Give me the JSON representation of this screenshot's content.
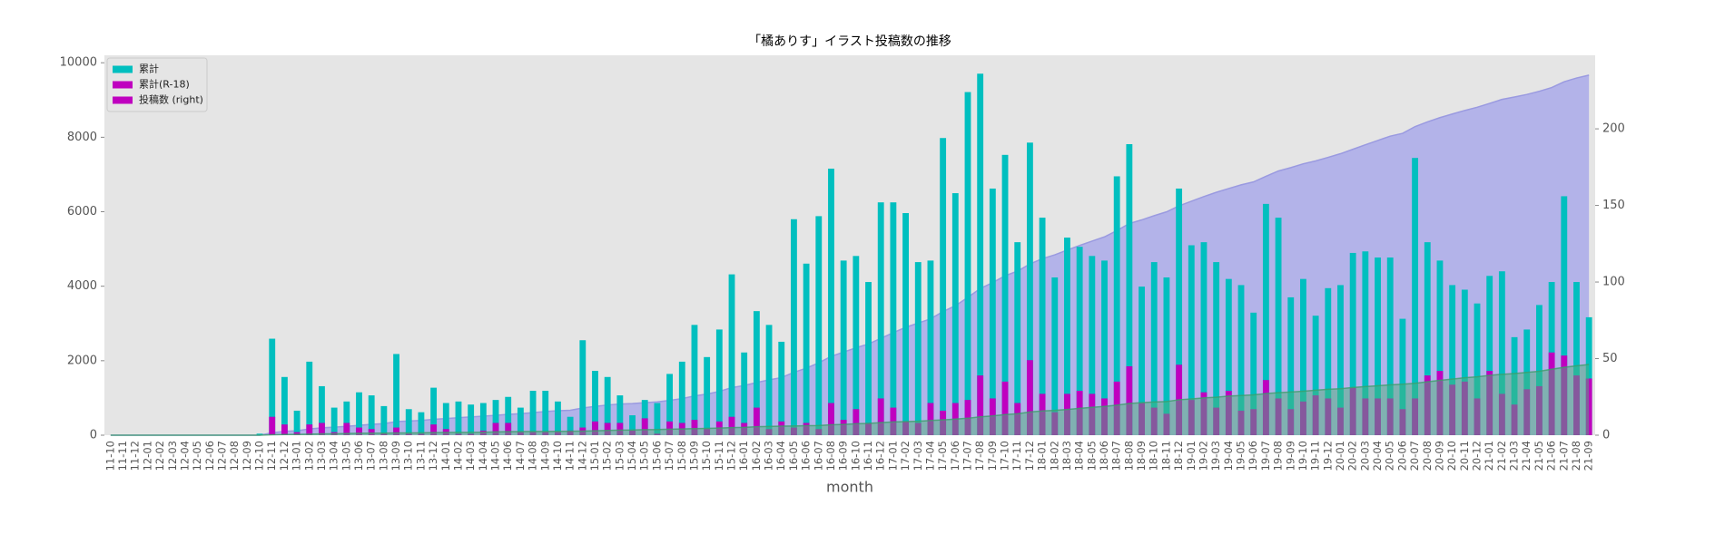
{
  "chart_data": {
    "type": "bar",
    "title": "「橘ありす」イラスト投稿数の推移",
    "x_label": "month",
    "categories": [
      "11-10",
      "11-11",
      "11-12",
      "12-01",
      "12-02",
      "12-03",
      "12-04",
      "12-05",
      "12-06",
      "12-07",
      "12-08",
      "12-09",
      "12-10",
      "12-11",
      "12-12",
      "13-01",
      "13-02",
      "13-03",
      "13-04",
      "13-05",
      "13-06",
      "13-07",
      "13-08",
      "13-09",
      "13-10",
      "13-11",
      "13-12",
      "14-01",
      "14-02",
      "14-03",
      "14-04",
      "14-05",
      "14-06",
      "14-07",
      "14-08",
      "14-09",
      "14-10",
      "14-11",
      "14-12",
      "15-01",
      "15-02",
      "15-03",
      "15-04",
      "15-05",
      "15-06",
      "15-07",
      "15-08",
      "15-09",
      "15-10",
      "15-11",
      "15-12",
      "16-01",
      "16-02",
      "16-03",
      "16-04",
      "16-05",
      "16-06",
      "16-07",
      "16-08",
      "16-09",
      "16-10",
      "16-11",
      "16-12",
      "17-01",
      "17-02",
      "17-03",
      "17-04",
      "17-05",
      "17-06",
      "17-07",
      "17-08",
      "17-09",
      "17-10",
      "17-11",
      "17-12",
      "18-01",
      "18-02",
      "18-03",
      "18-04",
      "18-05",
      "18-06",
      "18-07",
      "18-08",
      "18-09",
      "18-10",
      "18-11",
      "18-12",
      "19-01",
      "19-02",
      "19-03",
      "19-04",
      "19-05",
      "19-06",
      "19-07",
      "19-08",
      "19-09",
      "19-10",
      "19-11",
      "19-12",
      "20-01",
      "20-02",
      "20-03",
      "20-04",
      "20-05",
      "20-06",
      "20-07",
      "20-08",
      "20-09",
      "20-10",
      "20-11",
      "20-12",
      "21-01",
      "21-02",
      "21-03",
      "21-04",
      "21-05",
      "21-06",
      "21-07",
      "21-08",
      "21-09"
    ],
    "series": [
      {
        "name": "累計",
        "type": "area",
        "color": "#b3b3e9",
        "line_color": "#9a9ae0",
        "alpha": 1,
        "legend_color": "#00bfbf",
        "values": [
          0,
          0,
          0,
          0,
          0,
          0,
          0,
          0,
          0,
          0,
          0,
          0,
          1,
          64,
          102,
          118,
          166,
          198,
          216,
          238,
          266,
          292,
          311,
          364,
          381,
          396,
          427,
          448,
          470,
          490,
          511,
          534,
          559,
          577,
          606,
          635,
          657,
          669,
          731,
          773,
          811,
          837,
          850,
          873,
          894,
          934,
          982,
          1054,
          1105,
          1174,
          1279,
          1333,
          1414,
          1486,
          1547,
          1688,
          1800,
          1943,
          2117,
          2231,
          2348,
          2448,
          2600,
          2752,
          2897,
          3010,
          3124,
          3318,
          3476,
          3700,
          3936,
          4097,
          4280,
          4406,
          4597,
          4739,
          4842,
          4971,
          5094,
          5211,
          5325,
          5494,
          5684,
          5781,
          5894,
          5997,
          6158,
          6282,
          6408,
          6521,
          6623,
          6721,
          6801,
          6952,
          7094,
          7184,
          7286,
          7364,
          7460,
          7558,
          7677,
          7797,
          7913,
          8029,
          8105,
          8286,
          8412,
          8526,
          8624,
          8719,
          8805,
          8909,
          9016,
          9080,
          9149,
          9234,
          9334,
          9490,
          9590,
          9667
        ]
      },
      {
        "name": "累計(R-18)",
        "type": "area",
        "color": "#4daf7c",
        "line_color": "#3d9d6c",
        "alpha": 0.5,
        "legend_color": "#bf00bf",
        "values": [
          0,
          0,
          0,
          0,
          0,
          0,
          0,
          0,
          0,
          0,
          0,
          0,
          0,
          12,
          19,
          21,
          28,
          36,
          38,
          46,
          51,
          55,
          56,
          61,
          62,
          63,
          70,
          74,
          75,
          76,
          79,
          87,
          95,
          97,
          99,
          101,
          103,
          106,
          111,
          120,
          128,
          136,
          139,
          150,
          151,
          160,
          168,
          178,
          182,
          191,
          203,
          211,
          229,
          233,
          242,
          247,
          255,
          259,
          280,
          290,
          307,
          315,
          339,
          357,
          366,
          374,
          395,
          411,
          432,
          455,
          494,
          518,
          553,
          574,
          623,
          650,
          665,
          692,
          721,
          748,
          772,
          807,
          852,
          873,
          891,
          905,
          951,
          974,
          1002,
          1020,
          1049,
          1065,
          1082,
          1118,
          1142,
          1159,
          1181,
          1207,
          1231,
          1249,
          1280,
          1304,
          1328,
          1352,
          1369,
          1393,
          1432,
          1474,
          1507,
          1542,
          1566,
          1608,
          1635,
          1655,
          1685,
          1717,
          1771,
          1823,
          1862,
          1899
        ]
      },
      {
        "name": "投稿数 (right)",
        "type": "bar",
        "axis": "y2",
        "color": "#00bfbf",
        "legend_color": "#bf00bf",
        "values": [
          0,
          0,
          0,
          0,
          0,
          0,
          0,
          0,
          0,
          0,
          0,
          0,
          1,
          63,
          38,
          16,
          48,
          32,
          18,
          22,
          28,
          26,
          19,
          53,
          17,
          15,
          31,
          21,
          22,
          20,
          21,
          23,
          25,
          18,
          29,
          29,
          22,
          12,
          62,
          42,
          38,
          26,
          13,
          23,
          21,
          40,
          48,
          72,
          51,
          69,
          105,
          54,
          81,
          72,
          61,
          141,
          112,
          143,
          174,
          114,
          117,
          100,
          152,
          152,
          145,
          113,
          114,
          194,
          158,
          224,
          236,
          161,
          183,
          126,
          191,
          142,
          103,
          129,
          123,
          117,
          114,
          169,
          190,
          97,
          113,
          103,
          161,
          124,
          126,
          113,
          102,
          98,
          80,
          151,
          142,
          90,
          102,
          78,
          96,
          98,
          119,
          120,
          116,
          116,
          76,
          181,
          126,
          114,
          98,
          95,
          86,
          104,
          107,
          64,
          69,
          85,
          100,
          156,
          100,
          77
        ]
      },
      {
        "name": null,
        "type": "bar",
        "axis": "y2",
        "color": "#bf00bf",
        "values": [
          0,
          0,
          0,
          0,
          0,
          0,
          0,
          0,
          0,
          0,
          0,
          0,
          0,
          12,
          7,
          2,
          7,
          8,
          2,
          8,
          5,
          4,
          1,
          5,
          1,
          1,
          7,
          4,
          1,
          1,
          3,
          8,
          8,
          2,
          2,
          2,
          2,
          3,
          5,
          9,
          8,
          8,
          3,
          11,
          1,
          9,
          8,
          10,
          4,
          9,
          12,
          8,
          18,
          4,
          9,
          5,
          8,
          4,
          21,
          10,
          17,
          8,
          24,
          18,
          9,
          8,
          21,
          16,
          21,
          23,
          39,
          24,
          35,
          21,
          49,
          27,
          15,
          27,
          29,
          27,
          24,
          35,
          45,
          21,
          18,
          14,
          46,
          23,
          28,
          18,
          29,
          16,
          17,
          36,
          24,
          17,
          22,
          26,
          24,
          18,
          31,
          24,
          24,
          24,
          17,
          24,
          39,
          42,
          33,
          35,
          24,
          42,
          27,
          20,
          30,
          32,
          54,
          52,
          39,
          37
        ]
      }
    ],
    "ylim": [
      0,
      10200
    ],
    "yticks": [
      0,
      2000,
      4000,
      6000,
      8000,
      10000
    ],
    "y2lim": [
      0,
      248
    ],
    "y2ticks": [
      0,
      50,
      100,
      150,
      200
    ],
    "grid": false,
    "legend": "upper left",
    "background": "#e5e5e5"
  }
}
